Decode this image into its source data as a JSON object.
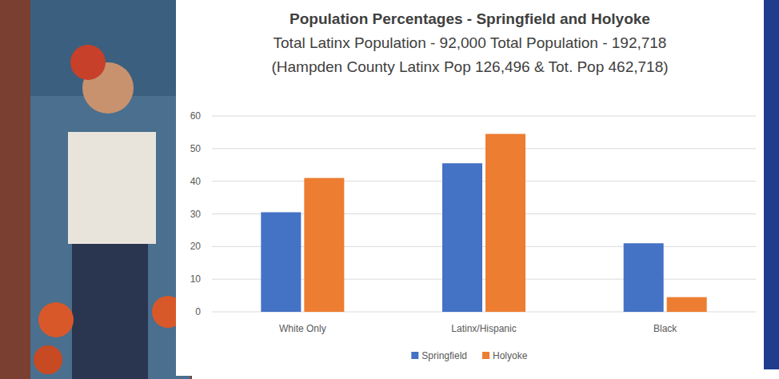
{
  "chart_data": {
    "type": "bar",
    "title": "Population Percentages - Springfield and Holyoke",
    "subtitle": [
      "Total Latinx Population - 92,000  Total Population - 192,718",
      "(Hampden County Latinx Pop 126,496 & Tot. Pop 462,718)"
    ],
    "categories": [
      "White Only",
      "Latinx/Hispanic",
      "Black"
    ],
    "series": [
      {
        "name": "Springfield",
        "color": "#4472c4",
        "values": [
          30.5,
          45.5,
          21
        ]
      },
      {
        "name": "Holyoke",
        "color": "#ed7d31",
        "values": [
          41,
          54.5,
          4.5
        ]
      }
    ],
    "ylim": [
      0,
      60
    ],
    "yticks": [
      0,
      10,
      20,
      30,
      40,
      50,
      60
    ],
    "grid": true,
    "legend": "bottom"
  }
}
